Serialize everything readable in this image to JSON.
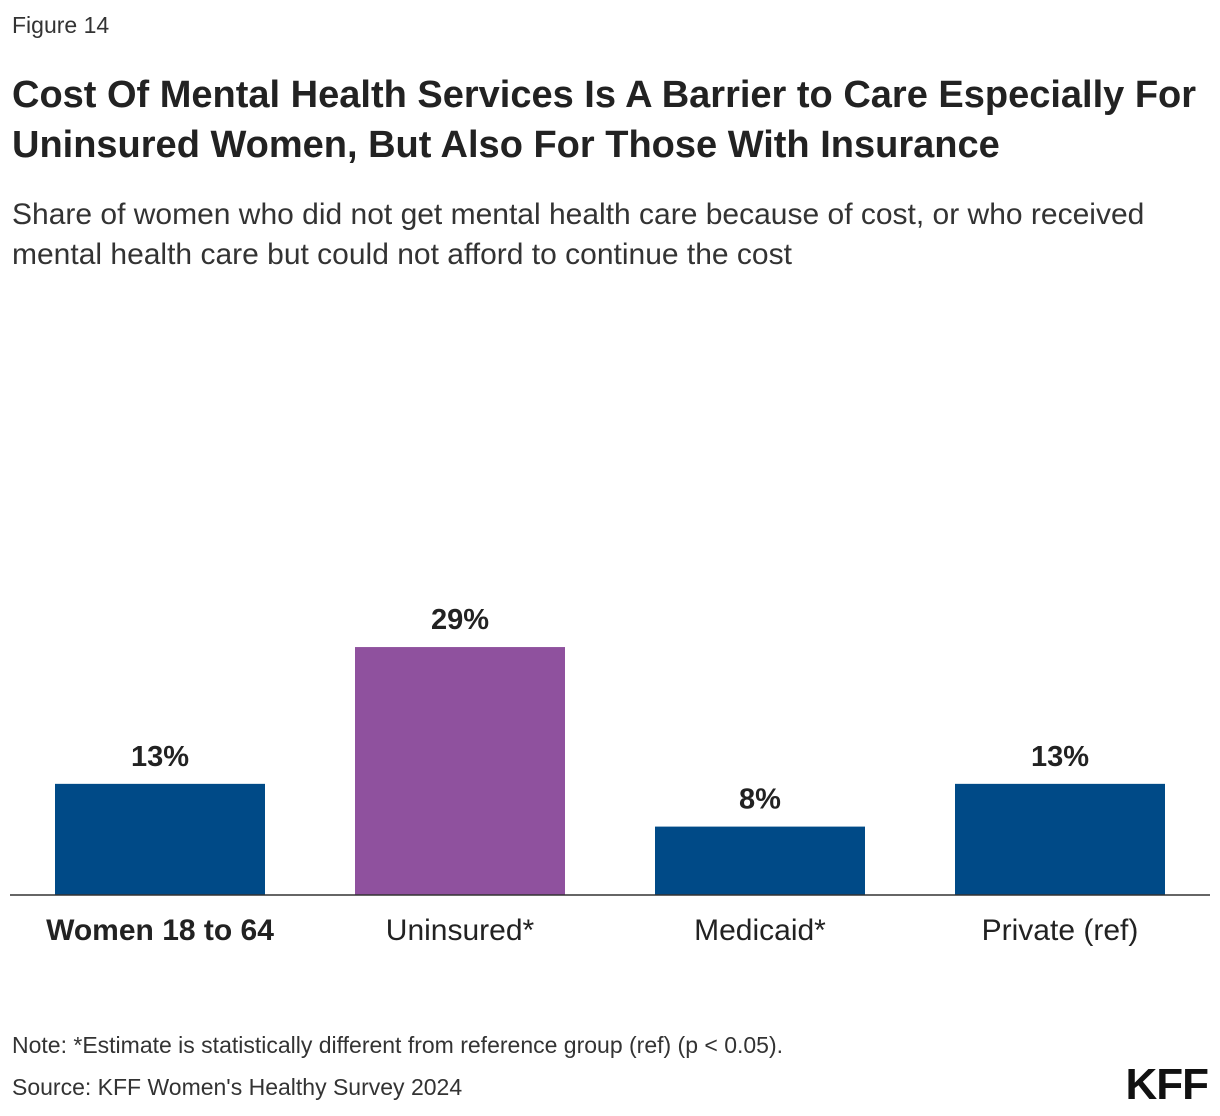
{
  "figure_label": "Figure 14",
  "title": "Cost Of Mental Health Services Is A Barrier to Care Especially For Uninsured Women, But Also For Those With Insurance",
  "subtitle": "Share of women who did not get mental health care because of cost, or who received mental health care but could not afford to continue the cost",
  "chart_data": {
    "type": "bar",
    "categories": [
      "Women 18 to 64",
      "Uninsured*",
      "Medicaid*",
      "Private (ref)"
    ],
    "values": [
      13,
      29,
      8,
      13
    ],
    "value_labels": [
      "13%",
      "29%",
      "8%",
      "13%"
    ],
    "bold_categories": [
      true,
      false,
      false,
      false
    ],
    "colors": [
      "#004a87",
      "#8f519e",
      "#004a87",
      "#004a87"
    ],
    "axis_color": "#333333",
    "ylim": [
      0,
      35
    ],
    "xlabel": "",
    "ylabel": "",
    "grid": false,
    "legend": "none"
  },
  "note": "Note: *Estimate is statistically different from reference group (ref) (p < 0.05).",
  "source": "Source: KFF Women's Healthy Survey 2024",
  "logo_text": "KFF"
}
